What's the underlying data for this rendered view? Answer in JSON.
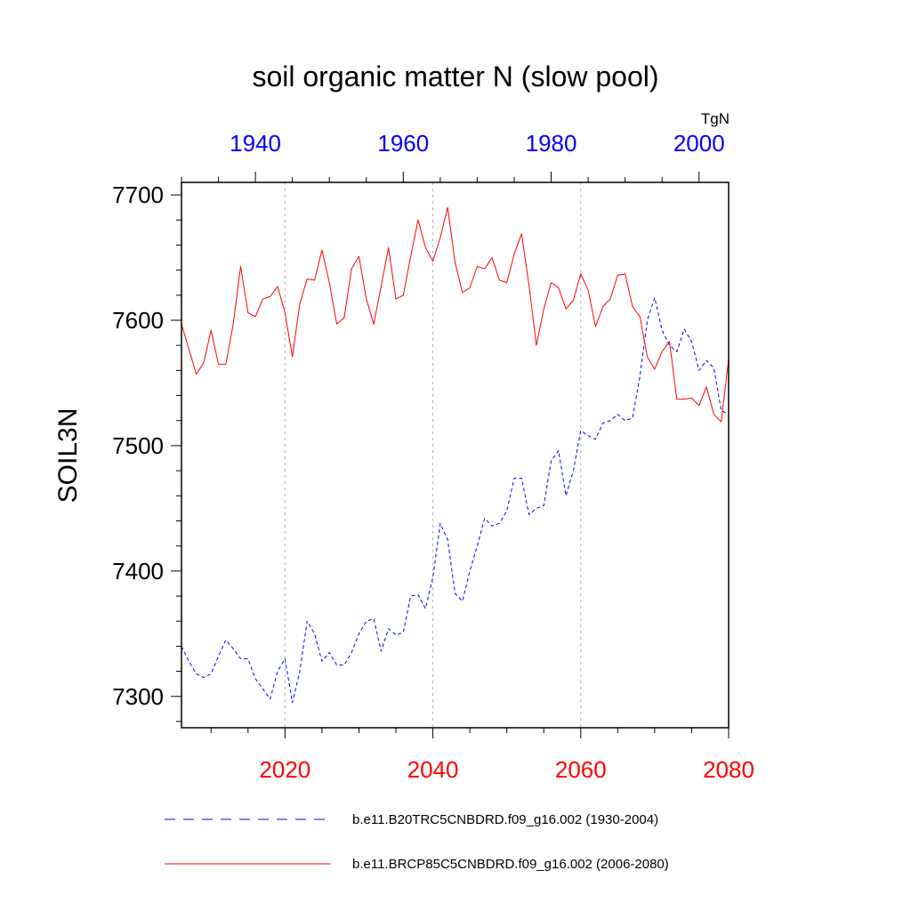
{
  "chart_data": {
    "type": "line",
    "title": "soil organic matter N (slow pool)",
    "ylabel": "SOIL3N",
    "units": "TgN",
    "ylim": [
      7275,
      7710
    ],
    "yticks": [
      7300,
      7400,
      7500,
      7600,
      7700
    ],
    "top_axis": {
      "xlim": [
        1930,
        2004
      ],
      "ticks": [
        1940,
        1960,
        1980,
        2000
      ],
      "color": "#0000ff"
    },
    "bottom_axis": {
      "xlim": [
        2006,
        2080
      ],
      "ticks": [
        2020,
        2040,
        2060,
        2080
      ],
      "color": "#ff0000"
    },
    "series": [
      {
        "name": "b.e11.B20TRC5CNBDRD.f09_g16.002 (1930-2004)",
        "axis": "top",
        "color": "#0000ff",
        "style": "dashed",
        "x": [
          1930,
          1931,
          1932,
          1933,
          1934,
          1935,
          1936,
          1937,
          1938,
          1939,
          1940,
          1941,
          1942,
          1943,
          1944,
          1945,
          1946,
          1947,
          1948,
          1949,
          1950,
          1951,
          1952,
          1953,
          1954,
          1955,
          1956,
          1957,
          1958,
          1959,
          1960,
          1961,
          1962,
          1963,
          1964,
          1965,
          1966,
          1967,
          1968,
          1969,
          1970,
          1971,
          1972,
          1973,
          1974,
          1975,
          1976,
          1977,
          1978,
          1979,
          1980,
          1981,
          1982,
          1983,
          1984,
          1985,
          1986,
          1987,
          1988,
          1989,
          1990,
          1991,
          1992,
          1993,
          1994,
          1995,
          1996,
          1997,
          1998,
          1999,
          2000,
          2001,
          2002,
          2003,
          2004
        ],
        "values": [
          7340,
          7328,
          7318,
          7315,
          7318,
          7332,
          7345,
          7338,
          7330,
          7330,
          7314,
          7306,
          7298,
          7320,
          7330,
          7295,
          7320,
          7360,
          7350,
          7328,
          7335,
          7325,
          7325,
          7335,
          7350,
          7360,
          7362,
          7336,
          7354,
          7349,
          7351,
          7380,
          7381,
          7370,
          7395,
          7438,
          7425,
          7382,
          7376,
          7400,
          7420,
          7442,
          7436,
          7438,
          7448,
          7474,
          7474,
          7445,
          7450,
          7452,
          7488,
          7496,
          7460,
          7480,
          7512,
          7508,
          7505,
          7518,
          7520,
          7525,
          7520,
          7522,
          7555,
          7600,
          7618,
          7592,
          7580,
          7575,
          7593,
          7583,
          7560,
          7568,
          7562,
          7528,
          7525
        ]
      },
      {
        "name": "b.e11.BRCP85C5CNBDRD.f09_g16.002 (2006-2080)",
        "axis": "bottom",
        "color": "#ff0000",
        "style": "solid",
        "x": [
          2006,
          2007,
          2008,
          2009,
          2010,
          2011,
          2012,
          2013,
          2014,
          2015,
          2016,
          2017,
          2018,
          2019,
          2020,
          2021,
          2022,
          2023,
          2024,
          2025,
          2026,
          2027,
          2028,
          2029,
          2030,
          2031,
          2032,
          2033,
          2034,
          2035,
          2036,
          2037,
          2038,
          2039,
          2040,
          2041,
          2042,
          2043,
          2044,
          2045,
          2046,
          2047,
          2048,
          2049,
          2050,
          2051,
          2052,
          2053,
          2054,
          2055,
          2056,
          2057,
          2058,
          2059,
          2060,
          2061,
          2062,
          2063,
          2064,
          2065,
          2066,
          2067,
          2068,
          2069,
          2070,
          2071,
          2072,
          2073,
          2074,
          2075,
          2076,
          2077,
          2078,
          2079,
          2080
        ],
        "values": [
          7597,
          7577,
          7557,
          7566,
          7592,
          7565,
          7565,
          7597,
          7643,
          7606,
          7603,
          7617,
          7619,
          7627,
          7606,
          7571,
          7613,
          7633,
          7632,
          7656,
          7630,
          7597,
          7602,
          7641,
          7651,
          7617,
          7597,
          7627,
          7658,
          7617,
          7620,
          7651,
          7680,
          7658,
          7647,
          7666,
          7690,
          7646,
          7622,
          7626,
          7643,
          7641,
          7650,
          7632,
          7630,
          7653,
          7669,
          7628,
          7580,
          7609,
          7630,
          7626,
          7609,
          7616,
          7637,
          7624,
          7595,
          7611,
          7617,
          7636,
          7637,
          7611,
          7603,
          7571,
          7561,
          7575,
          7583,
          7537,
          7537,
          7538,
          7532,
          7547,
          7525,
          7519,
          7569
        ]
      }
    ]
  }
}
